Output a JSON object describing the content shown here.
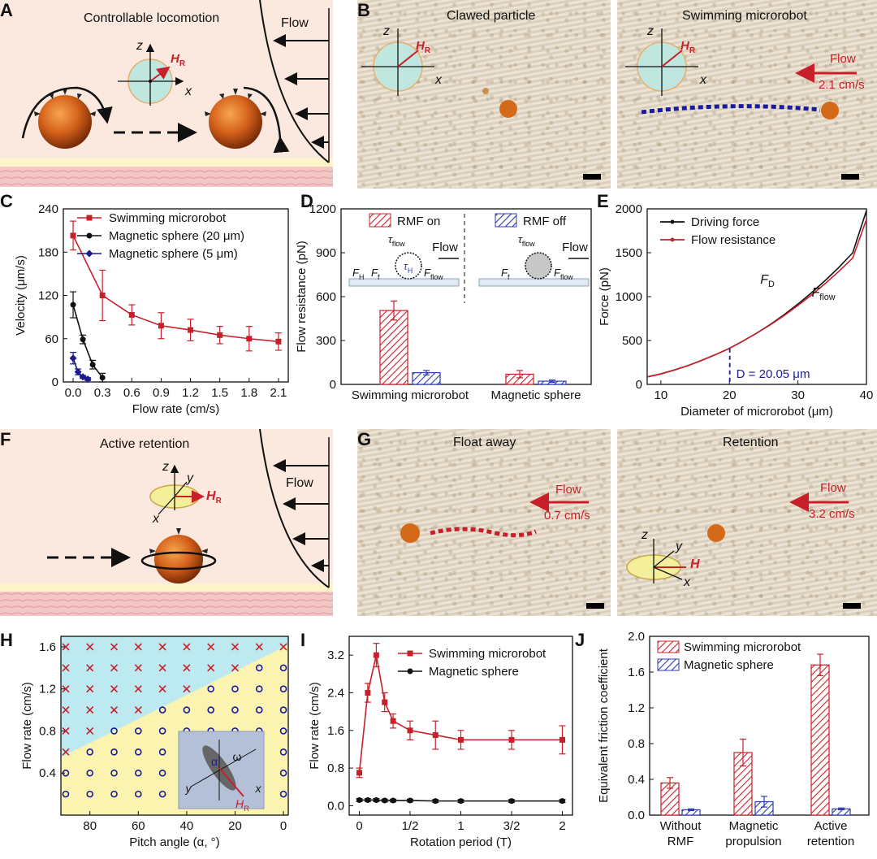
{
  "labels": {
    "A": "A",
    "B": "B",
    "C": "C",
    "D": "D",
    "E": "E",
    "F": "F",
    "G": "G",
    "H": "H",
    "I": "I",
    "J": "J"
  },
  "panelA": {
    "title": "Controllable  locomotion",
    "flow": "Flow",
    "ax_z": "z",
    "ax_x": "x",
    "field": "H",
    "field_sub": "R"
  },
  "panelB": {
    "left_title": "Clawed particle",
    "right_title": "Swimming microrobot",
    "ax_z": "z",
    "ax_x": "x",
    "field": "H",
    "field_sub": "R",
    "flow": "Flow",
    "flow_rate": "2.1 cm/s"
  },
  "panelF": {
    "title": "Active retention",
    "flow": "Flow",
    "ax_z": "z",
    "ax_y": "y",
    "ax_x": "x",
    "field": "H",
    "field_sub": "R"
  },
  "panelG": {
    "left_title": "Float away",
    "right_title": "Retention",
    "flow": "Flow",
    "flow_left": "0.7 cm/s",
    "flow_right": "3.2 cm/s",
    "ax_z": "z",
    "ax_y": "y",
    "ax_x": "x",
    "field": "H"
  },
  "colors": {
    "red": "#c8202a",
    "black": "#111111",
    "navy": "#1a1a8c",
    "blue_hatch": "#2d3bb0",
    "cyan": "#bdeaf0",
    "yellow": "#fbf3b0"
  },
  "chart_data": [
    {
      "panel": "C",
      "type": "line",
      "xlabel": "Flow rate (cm/s)",
      "ylabel": "Velocity (μm/s)",
      "xlim": [
        -0.1,
        2.2
      ],
      "ylim": [
        0,
        240
      ],
      "xticks": [
        "0.0",
        "0.3",
        "0.6",
        "0.9",
        "1.2",
        "1.5",
        "1.8",
        "2.1"
      ],
      "xtick_values": [
        0,
        0.3,
        0.6,
        0.9,
        1.2,
        1.5,
        1.8,
        2.1
      ],
      "yticks": [
        "0",
        "60",
        "120",
        "180",
        "240"
      ],
      "ytick_values": [
        0,
        60,
        120,
        180,
        240
      ],
      "legend_position": "top-right",
      "series": [
        {
          "name": "Swimming microrobot",
          "color": "#c8202a",
          "marker": "square",
          "x": [
            0,
            0.3,
            0.6,
            0.9,
            1.2,
            1.5,
            1.8,
            2.1
          ],
          "y": [
            203,
            120,
            93,
            78,
            72,
            65,
            60,
            56
          ],
          "err": [
            20,
            35,
            14,
            18,
            15,
            12,
            17,
            12
          ]
        },
        {
          "name": "Magnetic sphere (20 μm)",
          "color": "#111111",
          "marker": "circle",
          "x": [
            0,
            0.1,
            0.2,
            0.3
          ],
          "y": [
            107,
            59,
            24,
            6
          ],
          "err": [
            18,
            6,
            6,
            6
          ]
        },
        {
          "name": "Magnetic sphere (5 μm)",
          "color": "#1a1a8c",
          "marker": "diamond",
          "x": [
            0,
            0.05,
            0.1,
            0.15
          ],
          "y": [
            33,
            14,
            7,
            4
          ],
          "err": [
            8,
            4,
            2,
            2
          ]
        }
      ]
    },
    {
      "panel": "D",
      "type": "bar",
      "xlabel": "",
      "ylabel": "Flow resistance (pN)",
      "ylim": [
        0,
        1200
      ],
      "yticks": [
        "0",
        "300",
        "600",
        "900",
        "1200"
      ],
      "ytick_values": [
        0,
        300,
        600,
        900,
        1200
      ],
      "categories": [
        "Swimming microrobot",
        "Magnetic sphere"
      ],
      "series": [
        {
          "name": "RMF on",
          "color": "#c8202a",
          "values": [
            505,
            70
          ],
          "err": [
            65,
            25
          ]
        },
        {
          "name": "RMF off",
          "color": "#2d3bb0",
          "values": [
            80,
            22
          ],
          "err": [
            15,
            8
          ]
        }
      ],
      "inset_labels": {
        "tau_flow": "τ",
        "tau_flow_sub": "flow",
        "tau_h": "τ",
        "tau_h_sub": "H",
        "flow": "Flow",
        "fh": "F",
        "fh_sub": "H",
        "ff": "F",
        "ff_sub": "f",
        "fflow": "F",
        "fflow_sub": "flow"
      }
    },
    {
      "panel": "E",
      "type": "line",
      "xlabel": "Diameter of microrobot (μm)",
      "ylabel": "Force (pN)",
      "xlim": [
        8,
        40
      ],
      "ylim": [
        0,
        2000
      ],
      "xticks": [
        "10",
        "20",
        "30",
        "40"
      ],
      "xtick_values": [
        10,
        20,
        30,
        40
      ],
      "yticks": [
        "0",
        "500",
        "1000",
        "1500",
        "2000"
      ],
      "ytick_values": [
        0,
        500,
        1000,
        1500,
        2000
      ],
      "series": [
        {
          "name": "Driving force",
          "color": "#111111",
          "x": [
            8,
            10,
            12,
            14,
            16,
            18,
            20,
            22,
            24,
            26,
            28,
            30,
            32,
            34,
            36,
            38,
            40
          ],
          "y": [
            85,
            120,
            165,
            215,
            275,
            340,
            410,
            495,
            585,
            685,
            795,
            915,
            1045,
            1185,
            1335,
            1500,
            1980
          ]
        },
        {
          "name": "Flow resistance",
          "color": "#c8202a",
          "x": [
            8,
            10,
            12,
            14,
            16,
            18,
            20,
            22,
            24,
            26,
            28,
            30,
            32,
            34,
            36,
            38,
            40
          ],
          "y": [
            85,
            120,
            165,
            215,
            275,
            340,
            410,
            495,
            585,
            680,
            785,
            900,
            1020,
            1150,
            1290,
            1440,
            1880
          ]
        }
      ],
      "annotations": {
        "fd": "F",
        "fd_sub": "D",
        "fflow": "F",
        "fflow_sub": "flow",
        "dline_value": 20.05,
        "dlabel": "D = 20.05 μm"
      }
    },
    {
      "panel": "H",
      "type": "scatter",
      "xlabel": "Pitch angle (α, °)",
      "ylabel": "Flow rate (cm/s)",
      "xlim": [
        92,
        -2
      ],
      "ylim": [
        0,
        1.7
      ],
      "xticks": [
        "80",
        "60",
        "40",
        "20",
        "0"
      ],
      "xtick_values": [
        80,
        60,
        40,
        20,
        0
      ],
      "yticks": [
        "0.4",
        "0.8",
        "1.2",
        "1.6"
      ],
      "ytick_values": [
        0.4,
        0.8,
        1.2,
        1.6
      ],
      "x_grid": [
        90,
        80,
        70,
        60,
        50,
        40,
        30,
        20,
        10,
        0
      ],
      "y_grid": [
        0.2,
        0.4,
        0.6,
        0.8,
        1.0,
        1.2,
        1.4,
        1.6
      ],
      "boundary": [
        [
          92,
          0.55
        ],
        [
          -2,
          1.62
        ]
      ],
      "regions": {
        "above": "cross",
        "below": "circle"
      },
      "inset": {
        "alpha": "α",
        "omega": "ω",
        "y": "y",
        "x": "x",
        "field": "H",
        "field_sub": "R"
      }
    },
    {
      "panel": "I",
      "type": "line",
      "xlabel": "Rotation period (T)",
      "ylabel": "Flow rate (cm/s)",
      "xlim": [
        -0.1,
        2.1
      ],
      "ylim": [
        -0.2,
        3.6
      ],
      "xticks": [
        "0",
        "1/2",
        "1",
        "3/2",
        "2"
      ],
      "xtick_values": [
        0,
        0.5,
        1,
        1.5,
        2
      ],
      "yticks": [
        "0.0",
        "0.8",
        "1.6",
        "2.4",
        "3.2"
      ],
      "ytick_values": [
        0,
        0.8,
        1.6,
        2.4,
        3.2
      ],
      "series": [
        {
          "name": "Swimming microrobot",
          "color": "#c8202a",
          "marker": "square",
          "x": [
            0,
            0.083,
            0.167,
            0.25,
            0.333,
            0.5,
            0.75,
            1,
            1.5,
            2
          ],
          "y": [
            0.7,
            2.4,
            3.2,
            2.2,
            1.8,
            1.6,
            1.5,
            1.4,
            1.4,
            1.4
          ],
          "err": [
            0.1,
            0.2,
            0.25,
            0.2,
            0.15,
            0.2,
            0.3,
            0.2,
            0.2,
            0.3
          ]
        },
        {
          "name": "Magnetic sphere",
          "color": "#111111",
          "marker": "circle",
          "x": [
            0,
            0.083,
            0.167,
            0.25,
            0.333,
            0.5,
            0.75,
            1,
            1.5,
            2
          ],
          "y": [
            0.12,
            0.12,
            0.12,
            0.11,
            0.11,
            0.11,
            0.1,
            0.1,
            0.1,
            0.1
          ],
          "err": [
            0.03,
            0.03,
            0.03,
            0.03,
            0.03,
            0.03,
            0.03,
            0.03,
            0.03,
            0.03
          ]
        }
      ]
    },
    {
      "panel": "J",
      "type": "bar",
      "xlabel": "",
      "ylabel": "Equivalent friction coefficient",
      "ylim": [
        0,
        2.0
      ],
      "yticks": [
        "0.0",
        "0.4",
        "0.8",
        "1.2",
        "1.6",
        "2.0"
      ],
      "ytick_values": [
        0,
        0.4,
        0.8,
        1.2,
        1.6,
        2.0
      ],
      "categories": [
        [
          "Without",
          "RMF"
        ],
        [
          "Magnetic",
          "propulsion"
        ],
        [
          "Active",
          "retention"
        ]
      ],
      "series": [
        {
          "name": "Swimming microrobot",
          "color": "#c8202a",
          "values": [
            0.36,
            0.7,
            1.68
          ],
          "err": [
            0.06,
            0.15,
            0.12
          ]
        },
        {
          "name": "Magnetic sphere",
          "color": "#2d3bb0",
          "values": [
            0.06,
            0.15,
            0.07
          ],
          "err": [
            0.01,
            0.06,
            0.01
          ]
        }
      ]
    }
  ]
}
